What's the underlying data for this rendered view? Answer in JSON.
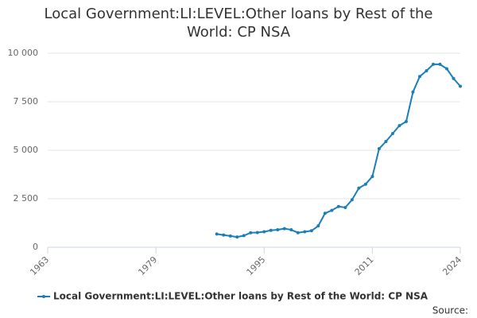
{
  "chart_data": {
    "type": "line",
    "title": "Local Government:LI:LEVEL:Other loans by Rest of the World: CP NSA",
    "x": [
      1988,
      1989,
      1990,
      1991,
      1992,
      1993,
      1994,
      1995,
      1996,
      1997,
      1998,
      1999,
      2000,
      2001,
      2002,
      2003,
      2004,
      2005,
      2006,
      2007,
      2008,
      2009,
      2010,
      2011,
      2012,
      2013,
      2014,
      2015,
      2016,
      2017,
      2018,
      2019,
      2020,
      2021,
      2022,
      2023,
      2024
    ],
    "series": [
      {
        "name": "Local Government:LI:LEVEL:Other loans by Rest of the World: CP NSA",
        "color": "#1a7fb8",
        "values": [
          680,
          630,
          580,
          530,
          600,
          750,
          760,
          800,
          870,
          900,
          960,
          900,
          750,
          800,
          850,
          1100,
          1750,
          1900,
          2100,
          2050,
          2450,
          3050,
          3250,
          3650,
          5080,
          5450,
          5860,
          6270,
          6480,
          8000,
          8800,
          9100,
          9430,
          9430,
          9200,
          8700,
          8300
        ]
      }
    ],
    "xlim": [
      1963,
      2024
    ],
    "xticks": [
      1963,
      1979,
      1995,
      2011,
      2024
    ],
    "ylim": [
      0,
      10000
    ],
    "yticks": [
      0,
      {
        "value": 2500,
        "label": "2 500"
      },
      {
        "value": 5000,
        "label": "5 000"
      },
      {
        "value": 7500,
        "label": "7 500"
      },
      {
        "value": 10000,
        "label": "10 000"
      }
    ],
    "grid": true,
    "legend": "bottom",
    "source": "Source:"
  }
}
